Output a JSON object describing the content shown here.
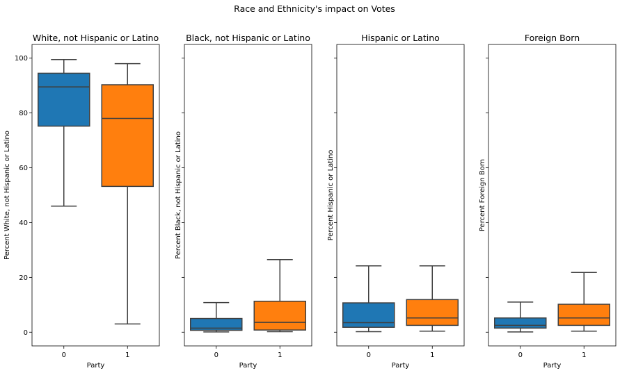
{
  "chart_data": {
    "type": "box",
    "suptitle": "Race and Ethnicity's impact on Votes",
    "ylim": [
      -5,
      105
    ],
    "yticks": [
      0,
      20,
      40,
      60,
      80,
      100
    ],
    "sharey": true,
    "colors": [
      "#1f77b4",
      "#ff7f0e"
    ],
    "panels": [
      {
        "title": "White, not Hispanic or Latino",
        "xlabel": "Party",
        "ylabel": "Percent White, not Hispanic or Latino",
        "categories": [
          "0",
          "1"
        ],
        "boxes": [
          {
            "category": "0",
            "whisker_low": 46,
            "q1": 75.2,
            "median": 89.5,
            "q3": 94.5,
            "whisker_high": 99.5
          },
          {
            "category": "1",
            "whisker_low": 3,
            "q1": 53.2,
            "median": 78,
            "q3": 90.3,
            "whisker_high": 98
          }
        ]
      },
      {
        "title": "Black, not Hispanic or Latino",
        "xlabel": "Party",
        "ylabel": "Percent Black, not Hispanic or Latino",
        "categories": [
          "0",
          "1"
        ],
        "boxes": [
          {
            "category": "0",
            "whisker_low": 0.1,
            "q1": 0.7,
            "median": 1.5,
            "q3": 5,
            "whisker_high": 10.8
          },
          {
            "category": "1",
            "whisker_low": 0.2,
            "q1": 0.8,
            "median": 3.6,
            "q3": 11.3,
            "whisker_high": 26.5
          }
        ]
      },
      {
        "title": "Hispanic or Latino",
        "xlabel": "Party",
        "ylabel": "Percent Hispanic or Latino",
        "categories": [
          "0",
          "1"
        ],
        "boxes": [
          {
            "category": "0",
            "whisker_low": 0.2,
            "q1": 1.8,
            "median": 3.5,
            "q3": 10.7,
            "whisker_high": 24.2
          },
          {
            "category": "1",
            "whisker_low": 0.4,
            "q1": 2.5,
            "median": 5.2,
            "q3": 11.9,
            "whisker_high": 24.2
          }
        ]
      },
      {
        "title": "Foreign Born",
        "xlabel": "Party",
        "ylabel": "Percent Foreign Born",
        "categories": [
          "0",
          "1"
        ],
        "boxes": [
          {
            "category": "0",
            "whisker_low": 0.1,
            "q1": 1.5,
            "median": 2.5,
            "q3": 5.2,
            "whisker_high": 11
          },
          {
            "category": "1",
            "whisker_low": 0.4,
            "q1": 2.5,
            "median": 5.2,
            "q3": 10.2,
            "whisker_high": 21.8
          }
        ]
      }
    ]
  }
}
